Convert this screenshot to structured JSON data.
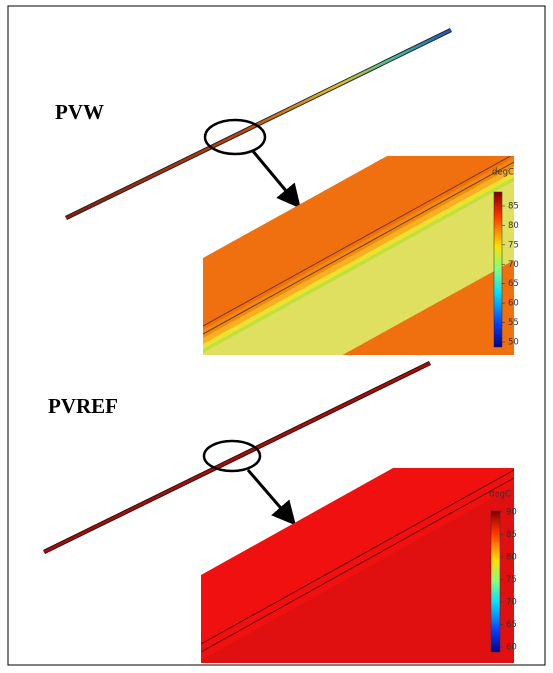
{
  "panels": [
    {
      "label": "PVW",
      "colorbar": {
        "unit": "degC",
        "range": [
          48.7,
          88.6
        ],
        "ticks": [
          50,
          55,
          60,
          65,
          70,
          75,
          80,
          85
        ]
      }
    },
    {
      "label": "PVREF",
      "colorbar": {
        "unit": "degC",
        "range": [
          58.9,
          90.2
        ],
        "ticks": [
          60,
          65,
          70,
          75,
          80,
          85,
          90
        ]
      }
    }
  ]
}
